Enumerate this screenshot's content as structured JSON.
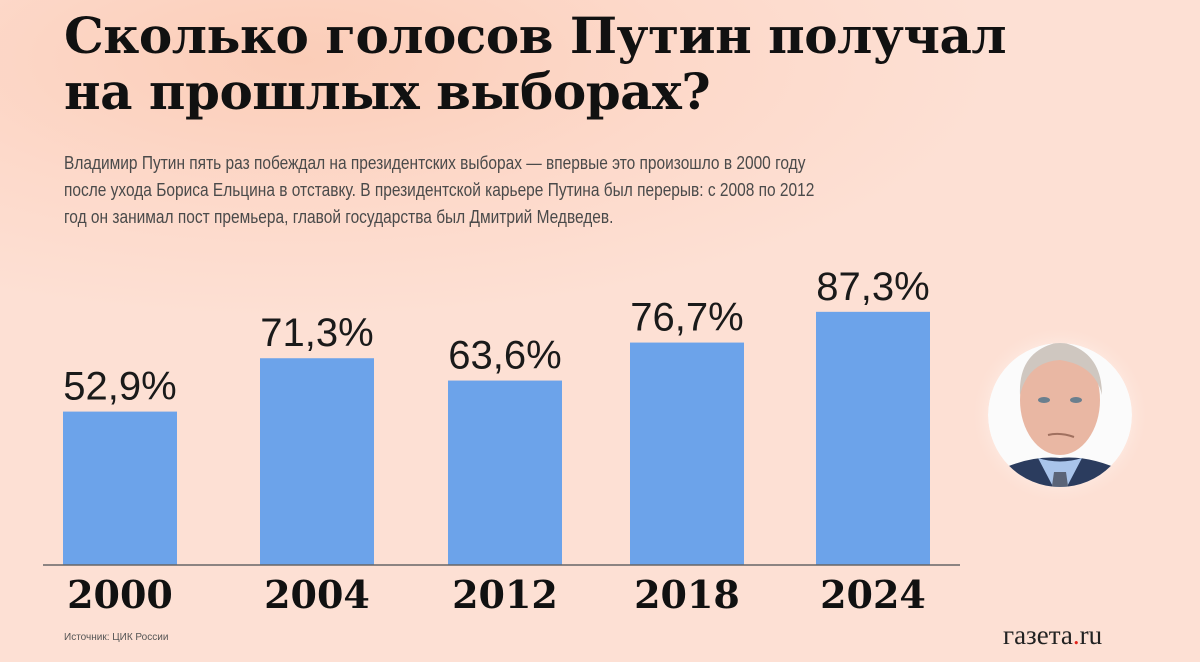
{
  "header": {
    "title_lines": [
      "Сколько голосов Путин получал",
      "на прошлых выборах?"
    ],
    "subtitle_lines": [
      "Владимир Путин пять раз побеждал на президентских выборах — впервые это произошло в 2000 году",
      "после ухода Бориса Ельцина в отставку. В президентской карьере Путина был перерыв: с 2008 по 2012",
      "год он занимал пост премьера, главой государства был Дмитрий Медведев."
    ]
  },
  "chart_data": {
    "type": "bar",
    "categories": [
      "2000",
      "2004",
      "2012",
      "2018",
      "2024"
    ],
    "values": [
      52.9,
      71.3,
      63.6,
      76.7,
      87.3
    ],
    "value_labels": [
      "52,9%",
      "71,3%",
      "63,6%",
      "76,7%",
      "87,3%"
    ],
    "title": "",
    "xlabel": "",
    "ylabel": "",
    "ylim": [
      0,
      100
    ],
    "grid": false,
    "bar_color": "#6ca3ea"
  },
  "footer": {
    "source": "Источник: ЦИК России",
    "logo_main": "газета",
    "logo_dot": ".",
    "logo_tld": "ru"
  },
  "photo": {
    "icon": "portrait-photo"
  }
}
